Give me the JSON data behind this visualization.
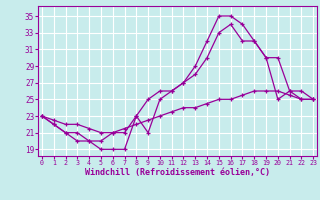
{
  "xlabel": "Windchill (Refroidissement éolien,°C)",
  "bg_color": "#c8ecec",
  "line_color": "#990099",
  "grid_color": "#ffffff",
  "spine_color": "#666666",
  "x_ticks": [
    0,
    1,
    2,
    3,
    4,
    5,
    6,
    7,
    8,
    9,
    10,
    11,
    12,
    13,
    14,
    15,
    16,
    17,
    18,
    19,
    20,
    21,
    22,
    23
  ],
  "y_ticks": [
    19,
    21,
    23,
    25,
    27,
    29,
    31,
    33,
    35
  ],
  "xlim": [
    -0.3,
    23.3
  ],
  "ylim": [
    18.2,
    36.2
  ],
  "line1_x": [
    0,
    1,
    2,
    3,
    4,
    5,
    6,
    7,
    8,
    9,
    10,
    11,
    12,
    13,
    14,
    15,
    16,
    17,
    18,
    19,
    20,
    21,
    22,
    23
  ],
  "line1_y": [
    23,
    22,
    21,
    20,
    20,
    19,
    19,
    19,
    23,
    21,
    25,
    26,
    27,
    29,
    32,
    35,
    35,
    34,
    32,
    30,
    25,
    26,
    25,
    25
  ],
  "line2_x": [
    0,
    1,
    2,
    3,
    4,
    5,
    6,
    7,
    8,
    9,
    10,
    11,
    12,
    13,
    14,
    15,
    16,
    17,
    18,
    19,
    20,
    21,
    22,
    23
  ],
  "line2_y": [
    23,
    22,
    21,
    21,
    20,
    20,
    21,
    21,
    23,
    25,
    26,
    26,
    27,
    28,
    30,
    33,
    34,
    32,
    32,
    30,
    30,
    26,
    26,
    25
  ],
  "line3_x": [
    0,
    1,
    2,
    3,
    4,
    5,
    6,
    7,
    8,
    9,
    10,
    11,
    12,
    13,
    14,
    15,
    16,
    17,
    18,
    19,
    20,
    21,
    22,
    23
  ],
  "line3_y": [
    23,
    22.5,
    22,
    22,
    21.5,
    21,
    21,
    21.5,
    22,
    22.5,
    23,
    23.5,
    24,
    24,
    24.5,
    25,
    25,
    25.5,
    26,
    26,
    26,
    25.5,
    25,
    25
  ]
}
